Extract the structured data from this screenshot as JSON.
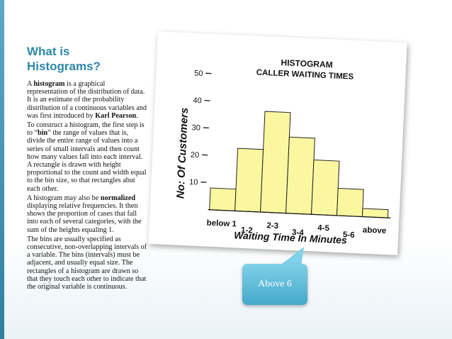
{
  "slide": {
    "title_line1": "What is",
    "title_line2": "Histograms?"
  },
  "body": {
    "p1": {
      "a": "A ",
      "b": "histogram",
      "c": " is a graphical representation of the distribution of data. It is an estimate of the probability distribution of a continuous variables and was first introduced by ",
      "d": "Karl Pearson",
      "e": "."
    },
    "p2": {
      "a": "To construct a histogram, the first step is to “",
      "b": "bin",
      "c": "” the range of values that is, divide the entire range of values into a series of small intervals and then count how many values fall into each interval. A rectangle is drawn with height proportional to the count and width equal to the bin size, so that rectangles abut each other."
    },
    "p3": {
      "a": " A histogram may also be ",
      "b": "normalized",
      "c": " displaying relative frequencies. It then shows the proportion of cases that fall into each of several categories, with the sum of the heights equaling 1."
    },
    "p4": " The bins are usually specified as consecutive, non-overlapping intervals of a variable. The bins (intervals) must be adjacent, and usually equal size. The rectangles of a histogram are drawn so that they touch each other to indicate that the original variable is continuous."
  },
  "figure": {
    "title_line1": "HISTOGRAM",
    "title_line2": "CALLER WAITING TIMES",
    "ylabel": "No: Of Customers",
    "xlabel": "Waiting Time In Minutes",
    "bar_fill": "#fbf7a0",
    "bar_stroke": "#222222"
  },
  "chart_data": {
    "type": "bar",
    "title": "HISTOGRAM CALLER WAITING TIMES",
    "xlabel": "Waiting Time In Minutes",
    "ylabel": "No: Of Customers",
    "categories": [
      "below 1",
      "1-2",
      "2-3",
      "3-4",
      "4-5",
      "5-6",
      "above"
    ],
    "values": [
      8,
      23,
      37,
      28,
      20,
      10,
      3
    ],
    "yticks": [
      10,
      20,
      30,
      40,
      50
    ],
    "ylim": [
      0,
      50
    ],
    "grid": false
  },
  "callout": {
    "label": "Above 6",
    "color": "#45a9c9"
  }
}
